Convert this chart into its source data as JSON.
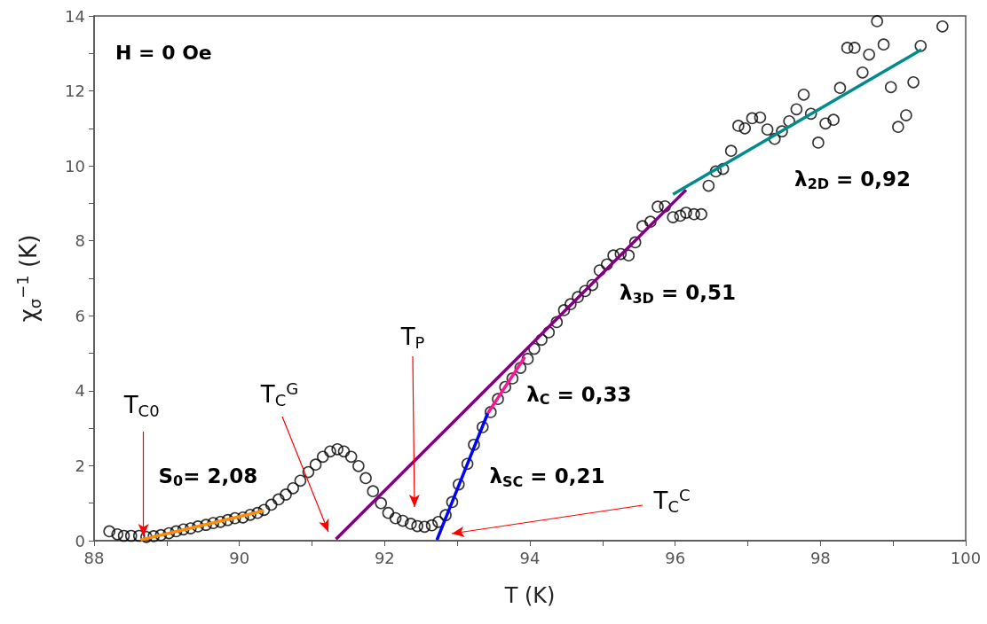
{
  "chart_data": {
    "type": "scatter",
    "title": "H = 0 Oe",
    "xlabel": "T (K)",
    "ylabel": "χ$_{σ}$$^{−1}$ (K)",
    "xlim": [
      88,
      100
    ],
    "ylim": [
      0,
      14
    ],
    "xticks": [
      88,
      {
        "value": 89,
        "label": null
      },
      90,
      {
        "value": 91,
        "label": null
      },
      92,
      {
        "value": 93,
        "label": null
      },
      94,
      {
        "value": 95,
        "label": null
      },
      96,
      {
        "value": 97,
        "label": null
      },
      98,
      {
        "value": 99,
        "label": null
      },
      100
    ],
    "yticks": [
      0,
      {
        "value": 1,
        "label": null
      },
      2,
      {
        "value": 3,
        "label": null
      },
      4,
      {
        "value": 5,
        "label": null
      },
      6,
      {
        "value": 7,
        "label": null
      },
      8,
      {
        "value": 9,
        "label": null
      },
      10,
      {
        "value": 11,
        "label": null
      },
      12,
      {
        "value": 13,
        "label": null
      },
      14
    ],
    "grid": false,
    "legend": false,
    "marker": "circle",
    "series": [
      {
        "color": "#000000",
        "x": [
          88.21,
          88.32,
          88.41,
          88.51,
          88.62,
          88.72,
          88.82,
          88.92,
          89.03,
          89.13,
          89.23,
          89.33,
          89.43,
          89.54,
          89.64,
          89.74,
          89.84,
          89.94,
          90.05,
          90.15,
          90.25,
          90.34,
          90.44,
          90.54,
          90.64,
          90.74,
          90.84,
          90.95,
          91.05,
          91.15,
          91.25,
          91.35,
          91.44,
          91.54,
          91.64,
          91.74,
          91.84,
          91.95,
          92.05,
          92.15,
          92.25,
          92.36,
          92.45,
          92.55,
          92.65,
          92.74,
          92.84,
          92.93,
          93.02,
          93.14,
          93.23,
          93.35,
          93.46,
          93.56,
          93.66,
          93.76,
          93.87,
          93.97,
          94.06,
          94.16,
          94.26,
          94.37,
          94.47,
          94.56,
          94.66,
          94.76,
          94.86,
          94.96,
          95.06,
          95.15,
          95.25,
          95.36,
          95.45,
          95.55,
          95.66,
          95.76,
          95.86,
          95.97,
          96.07,
          96.15,
          96.26,
          96.36,
          96.46,
          96.56,
          96.66,
          96.77,
          96.87,
          96.96,
          97.06,
          97.17,
          97.27,
          97.37,
          97.47,
          97.57,
          97.67,
          97.77,
          97.87,
          97.97,
          98.07,
          98.18,
          98.27,
          98.37,
          98.47,
          98.58,
          98.67,
          98.78,
          98.87,
          98.97,
          99.07,
          99.18,
          99.28,
          99.38,
          99.68
        ],
        "values": [
          0.25,
          0.17,
          0.13,
          0.13,
          0.13,
          0.1,
          0.12,
          0.15,
          0.2,
          0.25,
          0.3,
          0.33,
          0.38,
          0.42,
          0.47,
          0.5,
          0.55,
          0.6,
          0.62,
          0.69,
          0.74,
          0.82,
          0.96,
          1.1,
          1.23,
          1.4,
          1.6,
          1.83,
          2.03,
          2.24,
          2.38,
          2.44,
          2.38,
          2.24,
          1.99,
          1.67,
          1.32,
          1.0,
          0.74,
          0.6,
          0.53,
          0.45,
          0.39,
          0.37,
          0.41,
          0.5,
          0.68,
          1.03,
          1.5,
          2.05,
          2.56,
          3.03,
          3.43,
          3.78,
          4.1,
          4.33,
          4.61,
          4.85,
          5.12,
          5.36,
          5.56,
          5.83,
          6.15,
          6.31,
          6.5,
          6.66,
          6.82,
          7.21,
          7.37,
          7.61,
          7.65,
          7.61,
          7.96,
          8.39,
          8.51,
          8.91,
          8.92,
          8.63,
          8.67,
          8.75,
          8.71,
          8.71,
          9.47,
          9.85,
          9.92,
          10.4,
          11.07,
          11.0,
          11.27,
          11.29,
          10.97,
          10.72,
          10.92,
          11.19,
          11.51,
          11.9,
          11.39,
          10.62,
          11.13,
          11.23,
          12.08,
          13.15,
          13.15,
          12.49,
          12.97,
          13.86,
          13.24,
          12.1,
          11.04,
          11.35,
          12.23,
          13.2,
          13.72
        ]
      },
      {
        "type": "line",
        "name": "S$_{0}$= 2,08",
        "color": "#ff8c00",
        "marker": "none",
        "x": [
          88.64,
          90.34
        ],
        "values": [
          0.02,
          0.8
        ]
      },
      {
        "type": "line",
        "name": "λ$_{3D}$ = 0,51",
        "color": "#800080",
        "marker": "none",
        "x": [
          91.33,
          96.15
        ],
        "values": [
          0.04,
          9.36
        ]
      },
      {
        "type": "line",
        "name": "λ$_{C}$ = 0,33",
        "color": "#ff1493",
        "marker": "none",
        "x": [
          93.42,
          93.93
        ],
        "values": [
          3.4,
          4.9
        ]
      },
      {
        "type": "line",
        "name": "λ$_{SC}$ = 0,21",
        "color": "#0000ff",
        "marker": "none",
        "x": [
          92.72,
          93.42
        ],
        "values": [
          0.02,
          3.4
        ]
      },
      {
        "type": "line",
        "name": "λ$_{2D}$ = 0,92",
        "color": "#008b8b",
        "marker": "none",
        "x": [
          95.97,
          99.39
        ],
        "values": [
          9.24,
          13.1
        ]
      }
    ],
    "annotations": [
      {
        "text": "T$_{C0}$",
        "x": 88.68,
        "y": 0.12
      },
      "T$_{C}$$^{G}$",
      "T$_{P}$",
      "T$_{C}$$^{C}$"
    ]
  }
}
